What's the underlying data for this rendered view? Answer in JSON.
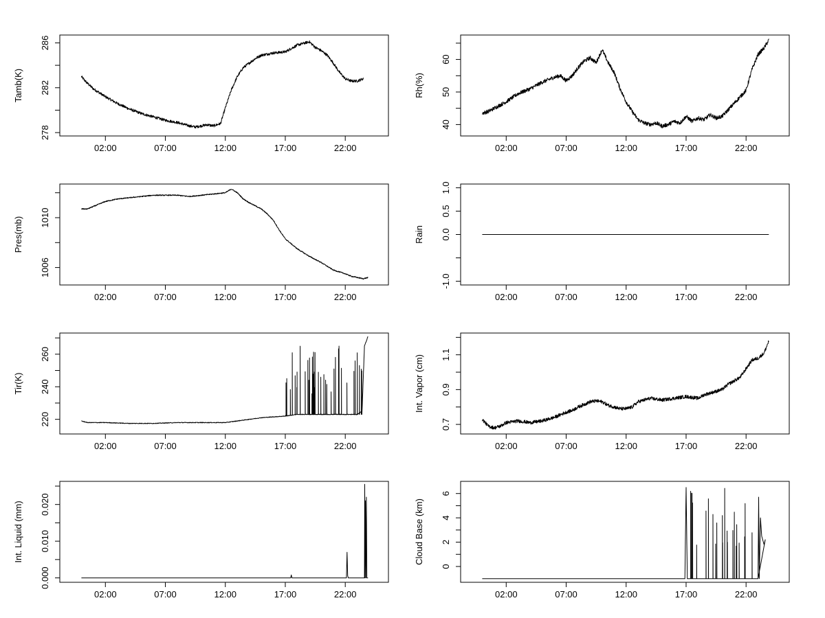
{
  "chart_data": [
    {
      "id": "tamb",
      "type": "line",
      "ylabel": "Tamb(K)",
      "ylim": [
        277.7,
        286.7
      ],
      "yticks": [
        278,
        282,
        286
      ],
      "yminor": [
        280,
        284
      ],
      "xlim": [
        -1.8,
        25.6
      ],
      "xticks": [
        2,
        7,
        12,
        17,
        22
      ],
      "xticklabels": [
        "02:00",
        "07:00",
        "12:00",
        "17:00",
        "22:00"
      ],
      "series": [
        {
          "noise": 0.12,
          "x": [
            0,
            0.4,
            1,
            2,
            3,
            4,
            5,
            6,
            7,
            8,
            9,
            9.5,
            10,
            10.5,
            11,
            11.6,
            12,
            12.5,
            13,
            13.5,
            14,
            14.5,
            15,
            16,
            17,
            18,
            19,
            19.5,
            20,
            20.5,
            21,
            21.5,
            22,
            22.5,
            23,
            23.5
          ],
          "y": [
            283.0,
            282.5,
            281.9,
            281.2,
            280.6,
            280.1,
            279.7,
            279.4,
            279.1,
            278.9,
            278.6,
            278.5,
            278.6,
            278.7,
            278.6,
            278.8,
            280.2,
            281.8,
            283.0,
            283.8,
            284.2,
            284.6,
            284.9,
            285.1,
            285.2,
            285.8,
            286.1,
            285.6,
            285.3,
            284.9,
            284.2,
            283.4,
            282.8,
            282.6,
            282.6,
            282.8
          ]
        }
      ]
    },
    {
      "id": "rh",
      "type": "line",
      "ylabel": "Rh(%)",
      "ylim": [
        36.5,
        67.5
      ],
      "yticks": [
        40,
        50,
        60
      ],
      "yminor": [
        45,
        55,
        65
      ],
      "xlim": [
        -1.8,
        25.6
      ],
      "xticks": [
        2,
        7,
        12,
        17,
        22
      ],
      "xticklabels": [
        "02:00",
        "07:00",
        "12:00",
        "17:00",
        "22:00"
      ],
      "series": [
        {
          "noise": 0.6,
          "x": [
            0,
            0.5,
            1,
            2,
            3,
            4,
            5,
            6,
            6.5,
            7,
            7.5,
            8,
            8.5,
            9,
            9.5,
            10,
            10.5,
            11,
            11.5,
            12,
            12.5,
            13,
            13.5,
            14,
            14.5,
            15,
            15.5,
            16,
            16.5,
            17,
            17.5,
            18,
            18.5,
            19,
            19.5,
            20,
            20.5,
            21,
            21.5,
            22,
            22.5,
            23,
            23.5,
            23.9
          ],
          "y": [
            43.5,
            44.0,
            45.0,
            47.0,
            49.5,
            51.0,
            53.0,
            54.5,
            55.0,
            53.5,
            55.0,
            57.5,
            59.5,
            60.5,
            59.0,
            63.0,
            59.0,
            56.0,
            51.0,
            47.0,
            44.0,
            41.5,
            40.5,
            40.0,
            40.5,
            39.5,
            40.0,
            41.0,
            40.5,
            42.5,
            41.0,
            42.0,
            41.5,
            43.0,
            42.0,
            42.5,
            44.5,
            46.5,
            48.5,
            50.5,
            57.0,
            61.5,
            63.5,
            66.0
          ]
        }
      ]
    },
    {
      "id": "pres",
      "type": "line",
      "ylabel": "Pres(mb)",
      "ylim": [
        1004.6,
        1012.7
      ],
      "yticks": [
        1006,
        1010
      ],
      "yminor": [
        1008,
        1012
      ],
      "xlim": [
        -1.8,
        25.6
      ],
      "xticks": [
        2,
        7,
        12,
        17,
        22
      ],
      "xticklabels": [
        "02:00",
        "07:00",
        "12:00",
        "17:00",
        "22:00"
      ],
      "series": [
        {
          "noise": 0.04,
          "x": [
            0,
            0.5,
            1,
            2,
            3,
            4,
            5,
            6,
            7,
            8,
            9,
            10,
            11,
            12,
            12.5,
            13,
            13.5,
            14,
            15,
            15.5,
            16,
            16.5,
            17,
            18,
            19,
            20,
            20.5,
            21,
            22,
            22.5,
            23,
            23.5,
            23.9
          ],
          "y": [
            1010.7,
            1010.7,
            1010.9,
            1011.3,
            1011.5,
            1011.6,
            1011.7,
            1011.8,
            1011.8,
            1011.8,
            1011.7,
            1011.8,
            1011.9,
            1012.0,
            1012.3,
            1012.0,
            1011.5,
            1011.2,
            1010.7,
            1010.3,
            1009.8,
            1009.0,
            1008.3,
            1007.5,
            1006.9,
            1006.4,
            1006.1,
            1005.8,
            1005.5,
            1005.3,
            1005.2,
            1005.1,
            1005.2
          ]
        }
      ]
    },
    {
      "id": "rain",
      "type": "line",
      "ylabel": "Rain",
      "ylim": [
        -1.08,
        1.08
      ],
      "yticks": [
        -1.0,
        0.0,
        0.5,
        1.0
      ],
      "yticklabels": [
        "-1.0",
        "0.0",
        "0.5",
        "1.0"
      ],
      "yminor": [
        -0.5
      ],
      "xlim": [
        -1.8,
        25.6
      ],
      "xticks": [
        2,
        7,
        12,
        17,
        22
      ],
      "xticklabels": [
        "02:00",
        "07:00",
        "12:00",
        "17:00",
        "22:00"
      ],
      "series": [
        {
          "noise": 0,
          "x": [
            0,
            23.9
          ],
          "y": [
            0,
            0
          ]
        }
      ]
    },
    {
      "id": "tir",
      "type": "line",
      "ylabel": "Tir(K)",
      "ylim": [
        211,
        273
      ],
      "yticks": [
        220,
        240,
        260
      ],
      "yminor": [
        230,
        250,
        270
      ],
      "xlim": [
        -1.8,
        25.6
      ],
      "xticks": [
        2,
        7,
        12,
        17,
        22
      ],
      "xticklabels": [
        "02:00",
        "07:00",
        "12:00",
        "17:00",
        "22:00"
      ],
      "series": [
        {
          "noise": 0.2,
          "spike_from": 17,
          "spike_to": 23.6,
          "spike_base": 223,
          "spike_top": 265,
          "x": [
            0,
            0.5,
            2,
            4,
            6,
            8,
            10,
            12,
            13,
            14,
            15,
            16,
            17,
            17.5,
            18,
            19,
            20,
            21,
            22,
            23,
            23.4,
            23.6,
            23.9
          ],
          "y": [
            219,
            218,
            218,
            217.5,
            217.5,
            218,
            218,
            218,
            219,
            220,
            221,
            221.5,
            222,
            222.5,
            223,
            223,
            223,
            223,
            223,
            223,
            225,
            265,
            271
          ]
        }
      ]
    },
    {
      "id": "vapor",
      "type": "line",
      "ylabel": "Int. Vapor (cm)",
      "ylim": [
        0.645,
        1.225
      ],
      "yticks": [
        0.7,
        0.9,
        1.1
      ],
      "yminor": [
        0.8,
        1.0,
        1.2
      ],
      "xlim": [
        -1.8,
        25.6
      ],
      "xticks": [
        2,
        7,
        12,
        17,
        22
      ],
      "xticklabels": [
        "02:00",
        "07:00",
        "12:00",
        "17:00",
        "22:00"
      ],
      "series": [
        {
          "noise": 0.01,
          "x": [
            0,
            0.5,
            1,
            1.5,
            2,
            3,
            4,
            5,
            6,
            7,
            7.5,
            8,
            9,
            9.5,
            10,
            10.5,
            11,
            11.5,
            12,
            12.5,
            13,
            14,
            15,
            16,
            17,
            18,
            18.5,
            19,
            20,
            20.5,
            21,
            21.5,
            22,
            22.5,
            23,
            23.5,
            23.9
          ],
          "y": [
            0.73,
            0.69,
            0.68,
            0.69,
            0.71,
            0.72,
            0.71,
            0.72,
            0.74,
            0.77,
            0.78,
            0.8,
            0.83,
            0.835,
            0.83,
            0.81,
            0.8,
            0.79,
            0.79,
            0.8,
            0.83,
            0.85,
            0.84,
            0.85,
            0.86,
            0.85,
            0.87,
            0.88,
            0.9,
            0.93,
            0.95,
            0.97,
            1.02,
            1.07,
            1.08,
            1.11,
            1.18
          ]
        }
      ]
    },
    {
      "id": "liquid",
      "type": "line",
      "ylabel": "Int. Liquid (mm)",
      "ylim": [
        -0.0012,
        0.0263
      ],
      "yticks": [
        0.0,
        0.01,
        0.02
      ],
      "yticklabels": [
        "0.000",
        "0.010",
        "0.020"
      ],
      "yminor": [
        0.005,
        0.015,
        0.025
      ],
      "xlim": [
        -1.8,
        25.6
      ],
      "xticks": [
        2,
        7,
        12,
        17,
        22
      ],
      "xticklabels": [
        "02:00",
        "07:00",
        "12:00",
        "17:00",
        "22:00"
      ],
      "series": [
        {
          "noise": 0,
          "x": [
            0,
            17.45,
            17.5,
            17.55,
            22.1,
            22.15,
            22.2,
            22.25,
            23.6,
            23.62,
            23.65,
            23.68,
            23.72,
            23.76,
            23.8,
            23.9
          ],
          "y": [
            0,
            0,
            0.0008,
            0,
            0,
            0.007,
            0.0006,
            0,
            0,
            0.0255,
            0,
            0.021,
            0,
            0.022,
            0,
            0
          ]
        }
      ]
    },
    {
      "id": "cloudbase",
      "type": "line",
      "ylabel": "Cloud Base (km)",
      "ylim": [
        -1.3,
        7.0
      ],
      "yticks": [
        0,
        2,
        4,
        6
      ],
      "yminor": [
        1,
        3,
        5
      ],
      "xlim": [
        -1.8,
        25.6
      ],
      "xticks": [
        2,
        7,
        12,
        17,
        22
      ],
      "xticklabels": [
        "02:00",
        "07:00",
        "12:00",
        "17:00",
        "22:00"
      ],
      "series": [
        {
          "noise": 0,
          "spike_from": 17,
          "spike_to": 22.5,
          "spike_base": -1,
          "spike_top": 6.6,
          "x": [
            0,
            16.9,
            17.0,
            17.1,
            22.5,
            23.0,
            23.05,
            23.1,
            23.2,
            23.3,
            23.5,
            23.6
          ],
          "y": [
            -1,
            -1,
            6.5,
            -1,
            -1,
            -1,
            5.7,
            -1,
            4.0,
            2.5,
            1.8,
            2.2
          ]
        }
      ]
    }
  ]
}
